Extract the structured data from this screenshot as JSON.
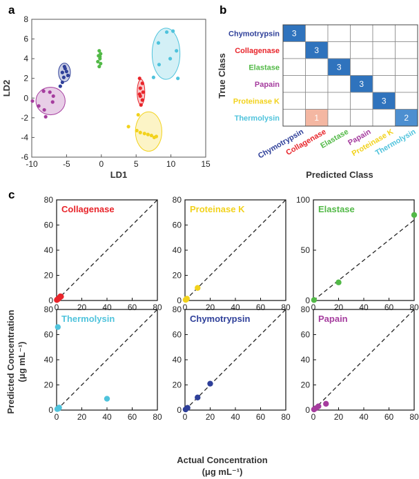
{
  "panel_labels": {
    "a": "a",
    "b": "b",
    "c": "c"
  },
  "colors": {
    "Chymotrypsin": "#2e3f99",
    "Collagenase": "#e8242a",
    "Elastase": "#52b947",
    "Papain": "#a53c9e",
    "Proteinase K": "#f2d21c",
    "Thermolysin": "#4fc3dc",
    "matrix_correct": "#2f73bd",
    "matrix_error": "#f4b7a2",
    "matrix_thermolysin": "#4d8fd0"
  },
  "chart_data": [
    {
      "id": "lda",
      "type": "scatter",
      "xlabel": "LD1",
      "ylabel": "LD2",
      "xlim": [
        -10,
        15
      ],
      "ylim": [
        -6,
        8
      ],
      "xticks": [
        -10,
        -5,
        0,
        5,
        10,
        15
      ],
      "yticks": [
        -6,
        -4,
        -2,
        0,
        2,
        4,
        6,
        8
      ],
      "series": [
        {
          "name": "Chymotrypsin",
          "ellipse": {
            "cx": -5.3,
            "cy": 2.6,
            "rx": 0.85,
            "ry": 0.95
          },
          "points": [
            [
              -5.3,
              3.2
            ],
            [
              -5.6,
              2.6
            ],
            [
              -5.0,
              2.7
            ],
            [
              -4.8,
              2.3
            ],
            [
              -5.4,
              2.1
            ],
            [
              -5.6,
              1.6
            ],
            [
              -5.9,
              1.2
            ],
            [
              -5.2,
              3.0
            ]
          ]
        },
        {
          "name": "Collagenase",
          "ellipse": {
            "cx": 5.7,
            "cy": 0.6,
            "rx": 0.55,
            "ry": 1.3
          },
          "points": [
            [
              5.5,
              2.0
            ],
            [
              5.9,
              1.5
            ],
            [
              5.6,
              1.0
            ],
            [
              6.0,
              0.6
            ],
            [
              5.6,
              0.2
            ],
            [
              5.9,
              -0.2
            ],
            [
              5.7,
              -0.7
            ],
            [
              5.5,
              0.4
            ]
          ]
        },
        {
          "name": "Elastase",
          "ellipse": null,
          "points": [
            [
              -0.3,
              4.8
            ],
            [
              -0.1,
              4.5
            ],
            [
              -0.4,
              4.3
            ],
            [
              -0.2,
              4.0
            ],
            [
              -0.5,
              3.7
            ],
            [
              -0.1,
              3.5
            ],
            [
              -0.3,
              3.2
            ],
            [
              -0.2,
              4.2
            ]
          ]
        },
        {
          "name": "Papain",
          "ellipse": {
            "cx": -7.3,
            "cy": -0.3,
            "rx": 2.1,
            "ry": 1.4
          },
          "points": [
            [
              -9.9,
              -0.3
            ],
            [
              -8.3,
              0.7
            ],
            [
              -7.4,
              0.6
            ],
            [
              -7.0,
              -0.4
            ],
            [
              -8.2,
              -1.2
            ],
            [
              -8.0,
              -1.9
            ],
            [
              -9.0,
              -0.8
            ],
            [
              -6.9,
              0.2
            ]
          ]
        },
        {
          "name": "Proteinase K",
          "ellipse": {
            "cx": 6.8,
            "cy": -3.4,
            "rx": 1.9,
            "ry": 2.0
          },
          "points": [
            [
              3.9,
              -2.9
            ],
            [
              5.1,
              -3.3
            ],
            [
              5.6,
              -3.5
            ],
            [
              6.2,
              -3.6
            ],
            [
              6.7,
              -3.7
            ],
            [
              7.2,
              -3.8
            ],
            [
              7.6,
              -4.0
            ],
            [
              7.9,
              -3.9
            ],
            [
              5.3,
              -1.7
            ]
          ]
        },
        {
          "name": "Thermolysin",
          "ellipse": {
            "cx": 9.3,
            "cy": 4.5,
            "rx": 2.0,
            "ry": 2.6
          },
          "points": [
            [
              9.4,
              6.7
            ],
            [
              10.3,
              6.8
            ],
            [
              8.2,
              5.6
            ],
            [
              10.8,
              4.8
            ],
            [
              9.9,
              4.0
            ],
            [
              8.3,
              3.4
            ],
            [
              7.5,
              2.1
            ],
            [
              11.0,
              2.0
            ]
          ]
        }
      ]
    },
    {
      "id": "confusion",
      "type": "heatmap",
      "ylabel": "True Class",
      "xlabel": "Predicted Class",
      "classes": [
        "Chymotrypsin",
        "Collagenase",
        "Elastase",
        "Papain",
        "Proteinase K",
        "Thermolysin"
      ],
      "matrix": [
        [
          3,
          0,
          0,
          0,
          0,
          0
        ],
        [
          0,
          3,
          0,
          0,
          0,
          0
        ],
        [
          0,
          0,
          3,
          0,
          0,
          0
        ],
        [
          0,
          0,
          0,
          3,
          0,
          0
        ],
        [
          0,
          0,
          0,
          0,
          3,
          0
        ],
        [
          0,
          1,
          0,
          0,
          0,
          2
        ]
      ]
    },
    {
      "id": "regression",
      "type": "scatter",
      "xlabel": "Actual Concentration",
      "xlabel_unit": "(μg mL⁻¹)",
      "ylabel": "Predicted Concentration",
      "ylabel_unit": "(μg mL⁻¹)",
      "subplots": [
        {
          "title": "Collagenase",
          "xlim": [
            0,
            80
          ],
          "ylim": [
            0,
            80
          ],
          "yticks": [
            0,
            20,
            40,
            60,
            80
          ],
          "xticks": [
            0,
            20,
            40,
            60,
            80
          ],
          "points": [
            [
              0.2,
              0.4
            ],
            [
              0.5,
              0.8
            ],
            [
              1,
              1
            ],
            [
              1.5,
              1.4
            ],
            [
              2,
              2
            ],
            [
              2.5,
              2.5
            ],
            [
              3,
              3.3
            ],
            [
              3.5,
              3.1
            ]
          ]
        },
        {
          "title": "Proteinase K",
          "xlim": [
            0,
            80
          ],
          "ylim": [
            0,
            80
          ],
          "yticks": [
            0,
            20,
            40,
            60,
            80
          ],
          "xticks": [
            0,
            20,
            40,
            60,
            80
          ],
          "points": [
            [
              0.5,
              0.5
            ],
            [
              1,
              0.8
            ],
            [
              1.5,
              1.5
            ],
            [
              10,
              10
            ]
          ]
        },
        {
          "title": "Elastase",
          "xlim": [
            0,
            80
          ],
          "ylim": [
            0,
            100
          ],
          "yticks": [
            0,
            50,
            100
          ],
          "xticks": [
            0,
            20,
            40,
            60,
            80
          ],
          "points": [
            [
              0.5,
              0.5
            ],
            [
              20,
              18
            ],
            [
              80,
              85
            ]
          ]
        },
        {
          "title": "Thermolysin",
          "xlim": [
            0,
            80
          ],
          "ylim": [
            0,
            80
          ],
          "yticks": [
            0,
            20,
            40,
            60,
            80
          ],
          "xticks": [
            0,
            20,
            40,
            60,
            80
          ],
          "points": [
            [
              1,
              66
            ],
            [
              40,
              9
            ],
            [
              2,
              2
            ],
            [
              0.5,
              0.8
            ],
            [
              1.5,
              1.2
            ]
          ]
        },
        {
          "title": "Chymotrypsin",
          "xlim": [
            0,
            80
          ],
          "ylim": [
            0,
            80
          ],
          "yticks": [
            0,
            20,
            40,
            60,
            80
          ],
          "xticks": [
            0,
            20,
            40,
            60,
            80
          ],
          "points": [
            [
              0.5,
              0.5
            ],
            [
              2,
              1.8
            ],
            [
              10,
              10
            ],
            [
              20,
              21
            ]
          ]
        },
        {
          "title": "Papain",
          "xlim": [
            0,
            80
          ],
          "ylim": [
            0,
            80
          ],
          "yticks": [
            0,
            20,
            40,
            60,
            80
          ],
          "xticks": [
            0,
            20,
            40,
            60,
            80
          ],
          "points": [
            [
              0.5,
              0.5
            ],
            [
              2,
              1.5
            ],
            [
              4,
              3
            ],
            [
              10,
              5
            ]
          ]
        }
      ]
    }
  ]
}
